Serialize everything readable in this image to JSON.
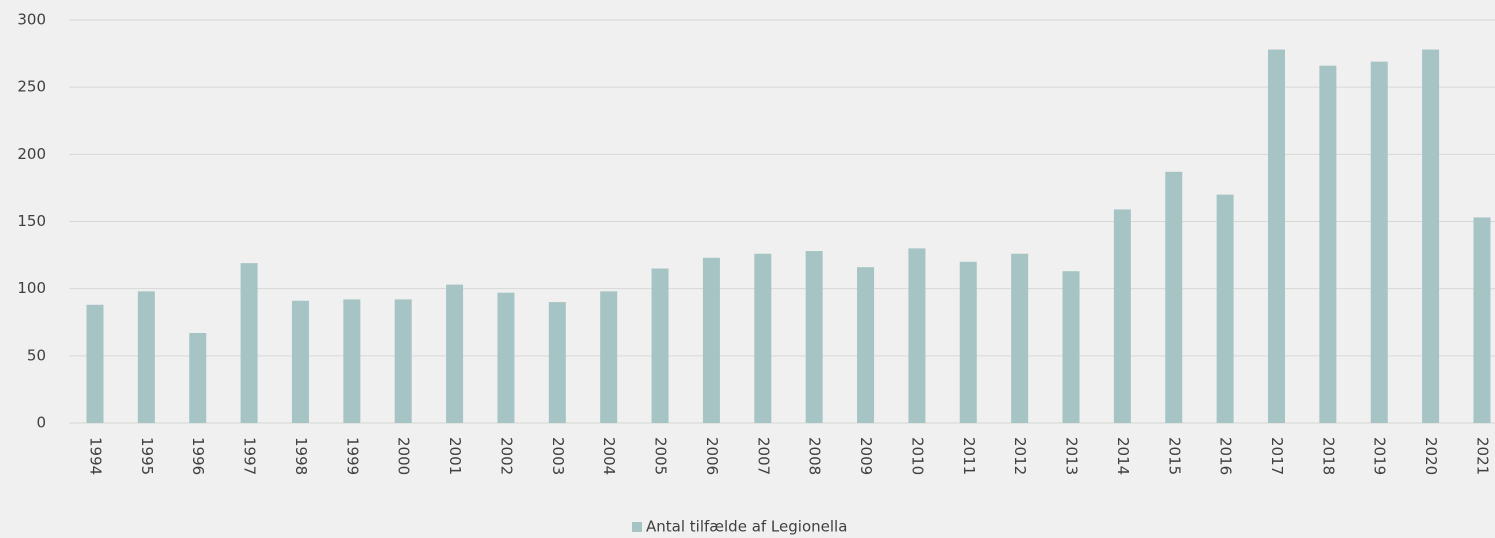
{
  "chart_data": {
    "type": "bar",
    "categories": [
      "1994",
      "1995",
      "1996",
      "1997",
      "1998",
      "1999",
      "2000",
      "2001",
      "2002",
      "2003",
      "2004",
      "2005",
      "2006",
      "2007",
      "2008",
      "2009",
      "2010",
      "2011",
      "2012",
      "2013",
      "2014",
      "2015",
      "2016",
      "2017",
      "2018",
      "2019",
      "2020",
      "2021"
    ],
    "series": [
      {
        "name": "Antal tilfælde af Legionella",
        "color": "#a7c4c4",
        "values": [
          88,
          98,
          67,
          119,
          91,
          92,
          92,
          103,
          97,
          90,
          98,
          115,
          123,
          126,
          128,
          116,
          130,
          120,
          126,
          113,
          159,
          187,
          170,
          278,
          266,
          269,
          278,
          153
        ]
      }
    ],
    "ylim": [
      0,
      300
    ],
    "yticks": [
      0,
      50,
      100,
      150,
      200,
      250,
      300
    ],
    "grid": true,
    "legend": "bottom"
  }
}
